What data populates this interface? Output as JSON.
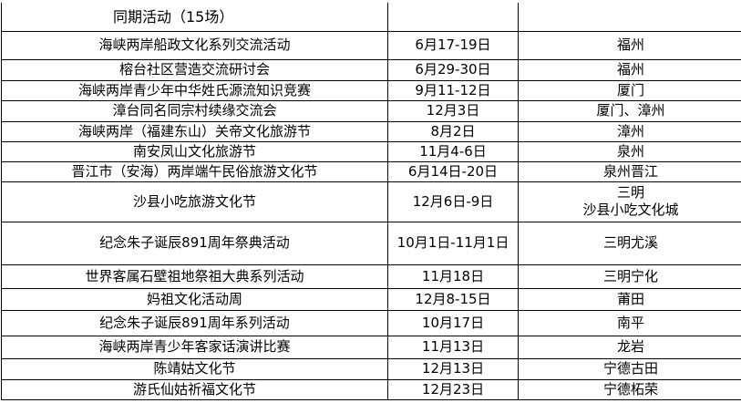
{
  "section_title": "同期活动（15场）",
  "rows": [
    {
      "name": "海峡两岸船政文化系列交流活动",
      "date": "6月17-19日",
      "place": "福州"
    },
    {
      "name": "榕台社区营造交流研讨会",
      "date": "6月29-30日",
      "place": "福州"
    },
    {
      "name": "海峡两岸青少年中华姓氏源流知识竞赛",
      "date": "9月11-12日",
      "place": "厦门"
    },
    {
      "name": "漳台同名同宗村续缘交流会",
      "date": "12月3日",
      "place": "厦门、漳州"
    },
    {
      "name": "海峡两岸（福建东山）关帝文化旅游节",
      "date": "8月2日",
      "place": "漳州"
    },
    {
      "name": "南安凤山文化旅游节",
      "date": "11月4-6日",
      "place": "泉州"
    },
    {
      "name": "晋江市（安海）两岸端午民俗旅游文化节",
      "date": "6月14日-20日",
      "place": "泉州晋江"
    },
    {
      "name": "沙县小吃旅游文化节",
      "date": "12月6日-9日",
      "place": "三明",
      "place2": "沙县小吃文化城"
    },
    {
      "name": "纪念朱子诞辰891周年祭典活动",
      "date": "10月1日-11月1日",
      "place": "三明尤溪"
    },
    {
      "name": "世界客属石壁祖地祭祖大典系列活动",
      "date": "11月18日",
      "place": "三明宁化"
    },
    {
      "name": "妈祖文化活动周",
      "date": "12月8-15日",
      "place": "莆田"
    },
    {
      "name": "纪念朱子诞辰891周年系列活动",
      "date": "10月17日",
      "place": "南平"
    },
    {
      "name": "海峡两岸青少年客家话演讲比赛",
      "date": "11月13日",
      "place": "龙岩"
    },
    {
      "name": "陈靖姑文化节",
      "date": "12月13日",
      "place": "宁德古田"
    },
    {
      "name": "游氏仙姑祈福文化节",
      "date": "12月23日",
      "place": "宁德柘荣"
    }
  ]
}
